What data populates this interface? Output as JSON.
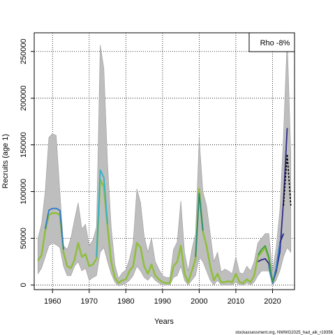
{
  "chart_data": {
    "type": "line",
    "xlabel": "Years",
    "ylabel": "Recruits (age 1)",
    "xlim": [
      1955,
      2026
    ],
    "ylim": [
      -5000,
      270000
    ],
    "x_ticks": [
      1960,
      1970,
      1980,
      1990,
      2000,
      2010,
      2020
    ],
    "y_ticks": [
      0,
      50000,
      100000,
      150000,
      200000,
      250000
    ],
    "grid": true,
    "legend": {
      "position": "top-right",
      "text": "Rho -8%"
    },
    "credit": "stockassessment.org, NWWG2025_had_aik_r19356",
    "colors": {
      "band": "#bebebe",
      "band_edge": "#9a9a9a",
      "main": "#8fbf3f",
      "dark_blue": "#2f2a8a",
      "blue": "#2a78c8",
      "cyan": "#30b0c8",
      "teal": "#2a8a7a",
      "green": "#3f9f3f",
      "forecast": "#000000"
    },
    "band": {
      "years": [
        1956,
        1957,
        1958,
        1959,
        1960,
        1961,
        1962,
        1963,
        1964,
        1965,
        1966,
        1967,
        1968,
        1969,
        1970,
        1971,
        1972,
        1973,
        1974,
        1975,
        1976,
        1977,
        1978,
        1979,
        1980,
        1981,
        1982,
        1983,
        1984,
        1985,
        1986,
        1987,
        1988,
        1989,
        1990,
        1991,
        1992,
        1993,
        1994,
        1995,
        1996,
        1997,
        1998,
        1999,
        2000,
        2001,
        2002,
        2003,
        2004,
        2005,
        2006,
        2007,
        2008,
        2009,
        2010,
        2011,
        2012,
        2013,
        2014,
        2015,
        2016,
        2017,
        2018,
        2019,
        2020,
        2021,
        2022,
        2023,
        2024,
        2025
      ],
      "upper": [
        50000,
        65000,
        100000,
        158000,
        162000,
        160000,
        100000,
        42000,
        38000,
        50000,
        70000,
        88000,
        60000,
        65000,
        42000,
        48000,
        62000,
        257000,
        232000,
        130000,
        62000,
        22000,
        7000,
        13000,
        16000,
        28000,
        45000,
        103000,
        88000,
        52000,
        35000,
        50000,
        25000,
        17000,
        10000,
        8000,
        8000,
        38000,
        46000,
        90000,
        35000,
        15000,
        38000,
        55000,
        157000,
        100000,
        85000,
        55000,
        25000,
        35000,
        14000,
        17000,
        15000,
        12000,
        30000,
        13000,
        12000,
        20000,
        15000,
        25000,
        45000,
        50000,
        55000,
        55000,
        15000,
        40000,
        80000,
        160000,
        265000,
        140000
      ],
      "lower": [
        12000,
        18000,
        30000,
        42000,
        45000,
        43000,
        40000,
        20000,
        10000,
        10000,
        20000,
        25000,
        15000,
        18000,
        5000,
        8000,
        10000,
        35000,
        40000,
        25000,
        12000,
        3000,
        -1000,
        0,
        2000,
        5000,
        10000,
        20000,
        15000,
        8000,
        5000,
        10000,
        5000,
        2000,
        0,
        0,
        0,
        8000,
        10000,
        20000,
        5000,
        0,
        5000,
        10000,
        30000,
        25000,
        15000,
        5000,
        0,
        5000,
        0,
        0,
        0,
        0,
        3000,
        0,
        0,
        2000,
        0,
        3000,
        10000,
        15000,
        15000,
        15000,
        0,
        5000,
        15000,
        30000,
        40000,
        35000
      ]
    },
    "series": [
      {
        "name": "",
        "color": "main",
        "x": [
          1956,
          1957,
          1958,
          1959,
          1960,
          1961,
          1962,
          1963,
          1964,
          1965,
          1966,
          1967,
          1968,
          1969,
          1970,
          1971,
          1972,
          1973,
          1974,
          1975,
          1976,
          1977,
          1978,
          1979,
          1980,
          1981,
          1982,
          1983,
          1984,
          1985,
          1986,
          1987,
          1988,
          1989,
          1990,
          1991,
          1992,
          1993,
          1994,
          1995,
          1996,
          1997,
          1998,
          1999,
          2000,
          2001,
          2002,
          2003,
          2004,
          2005,
          2006,
          2007,
          2008,
          2009,
          2010,
          2011,
          2012,
          2013,
          2014,
          2015,
          2016,
          2017,
          2018,
          2019,
          2020,
          2021,
          2022
        ],
        "y": [
          26000,
          32000,
          58000,
          75000,
          77000,
          77000,
          75000,
          35000,
          20000,
          18000,
          27000,
          45000,
          30000,
          33000,
          20000,
          22000,
          28000,
          113000,
          105000,
          62000,
          25000,
          8000,
          2000,
          5000,
          6000,
          15000,
          20000,
          45000,
          40000,
          20000,
          12000,
          22000,
          10000,
          6000,
          3000,
          2000,
          2000,
          20000,
          25000,
          42000,
          12000,
          3000,
          15000,
          28000,
          103000,
          57000,
          42000,
          20000,
          5000,
          12000,
          3000,
          3000,
          4000,
          3000,
          12000,
          3000,
          2000,
          6000,
          3000,
          10000,
          30000,
          35000,
          40000,
          28000,
          3000,
          14000,
          40000
        ]
      },
      {
        "name": "",
        "color": "blue",
        "x": [
          1958,
          1959,
          1960,
          1961,
          1962,
          1963
        ],
        "y": [
          60000,
          80000,
          82000,
          82000,
          80000,
          38000
        ]
      },
      {
        "name": "",
        "color": "cyan",
        "x": [
          1972,
          1973,
          1974,
          1975
        ],
        "y": [
          30000,
          123000,
          115000,
          65000
        ]
      },
      {
        "name": "",
        "color": "teal",
        "x": [
          1999,
          2000,
          2001
        ],
        "y": [
          30000,
          98000,
          58000
        ]
      },
      {
        "name": "",
        "color": "dark_blue",
        "x": [
          2016,
          2017,
          2018,
          2019,
          2020,
          2021,
          2022,
          2023,
          2024
        ],
        "y": [
          25000,
          27000,
          28000,
          23000,
          2000,
          15000,
          35000,
          90000,
          168000
        ]
      },
      {
        "name": "",
        "color": "blue",
        "x": [
          2019,
          2020,
          2021,
          2022,
          2023
        ],
        "y": [
          20000,
          2000,
          18000,
          45000,
          55000
        ]
      },
      {
        "name": "",
        "color": "green",
        "x": [
          2016,
          2017,
          2018,
          2019,
          2020
        ],
        "y": [
          32000,
          38000,
          42000,
          30000,
          3000
        ]
      },
      {
        "name": "",
        "color": "dark_blue",
        "x": [
          2022,
          2023
        ],
        "y": [
          45000,
          55000
        ]
      }
    ],
    "forecast": {
      "name": "",
      "x": [
        2023,
        2024,
        2025
      ],
      "y": [
        85000,
        140000,
        85000
      ]
    }
  }
}
